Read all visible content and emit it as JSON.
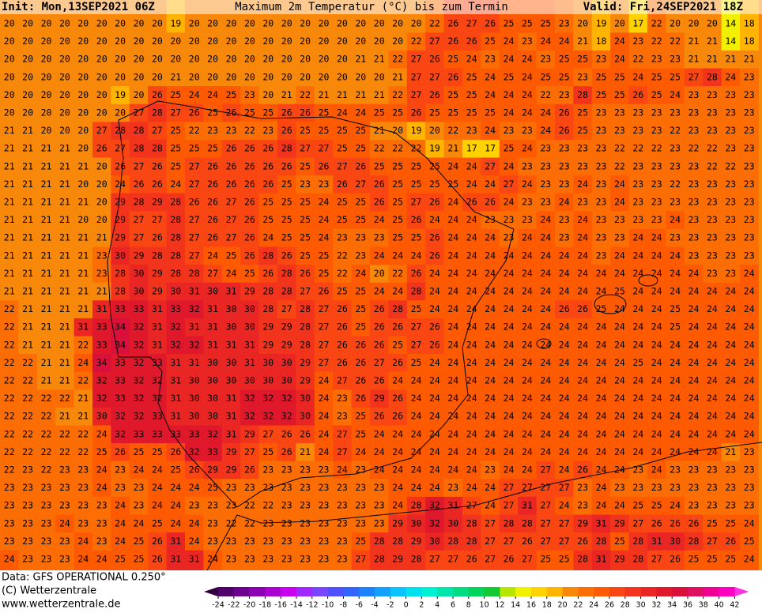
{
  "header": {
    "init": "Init: Mon,13SEP2021 06Z",
    "title": "Maximum 2m Temperatur (°C) bis zum Termin",
    "valid": "Valid: Fri,24SEP2021 18Z"
  },
  "map": {
    "rows": [
      [
        20,
        20,
        20,
        20,
        20,
        20,
        20,
        20,
        20,
        19,
        20,
        20,
        20,
        20,
        20,
        20,
        20,
        20,
        20,
        20,
        20,
        20,
        20,
        22,
        26,
        27,
        26,
        25,
        25,
        25,
        23,
        20,
        19,
        20,
        17,
        22,
        20,
        20,
        20,
        14,
        18
      ],
      [
        20,
        20,
        20,
        20,
        20,
        20,
        20,
        20,
        20,
        20,
        20,
        20,
        20,
        20,
        20,
        20,
        20,
        20,
        20,
        20,
        20,
        20,
        22,
        27,
        26,
        26,
        25,
        24,
        23,
        24,
        24,
        21,
        18,
        24,
        23,
        22,
        22,
        21,
        21,
        14,
        18
      ],
      [
        20,
        20,
        20,
        20,
        20,
        20,
        20,
        20,
        20,
        20,
        20,
        20,
        20,
        20,
        20,
        20,
        20,
        20,
        20,
        21,
        21,
        22,
        27,
        26,
        25,
        24,
        23,
        24,
        24,
        23,
        25,
        25,
        23,
        24,
        22,
        23,
        23,
        21,
        21,
        21,
        21
      ],
      [
        20,
        20,
        20,
        20,
        20,
        20,
        20,
        20,
        20,
        21,
        20,
        20,
        20,
        20,
        20,
        20,
        20,
        20,
        20,
        20,
        20,
        21,
        27,
        27,
        26,
        25,
        24,
        25,
        24,
        25,
        25,
        23,
        25,
        25,
        24,
        25,
        25,
        27,
        28,
        24,
        23
      ],
      [
        20,
        20,
        20,
        20,
        20,
        20,
        19,
        20,
        26,
        25,
        24,
        24,
        25,
        23,
        20,
        21,
        22,
        21,
        21,
        21,
        21,
        22,
        27,
        26,
        25,
        25,
        24,
        24,
        24,
        22,
        23,
        28,
        25,
        25,
        26,
        25,
        24,
        23,
        23,
        23,
        23
      ],
      [
        20,
        20,
        20,
        20,
        20,
        20,
        20,
        27,
        28,
        27,
        26,
        25,
        26,
        25,
        25,
        26,
        26,
        25,
        24,
        24,
        25,
        25,
        26,
        25,
        25,
        25,
        25,
        24,
        24,
        24,
        26,
        25,
        23,
        23,
        23,
        23,
        23,
        23,
        23,
        23,
        23
      ],
      [
        21,
        21,
        20,
        20,
        20,
        27,
        28,
        28,
        27,
        25,
        22,
        23,
        23,
        22,
        23,
        26,
        25,
        25,
        25,
        25,
        21,
        20,
        19,
        20,
        22,
        23,
        24,
        23,
        23,
        24,
        26,
        25,
        23,
        23,
        23,
        23,
        22,
        23,
        23,
        23,
        23
      ],
      [
        21,
        21,
        21,
        21,
        20,
        26,
        27,
        28,
        28,
        25,
        25,
        25,
        26,
        26,
        26,
        28,
        27,
        27,
        25,
        25,
        22,
        22,
        22,
        19,
        21,
        17,
        17,
        25,
        24,
        23,
        23,
        23,
        23,
        22,
        22,
        22,
        23,
        22,
        22,
        23,
        23
      ],
      [
        21,
        21,
        21,
        21,
        21,
        20,
        26,
        27,
        26,
        25,
        27,
        26,
        26,
        26,
        26,
        26,
        25,
        26,
        27,
        26,
        25,
        25,
        25,
        25,
        24,
        24,
        27,
        24,
        23,
        23,
        23,
        23,
        23,
        22,
        23,
        23,
        23,
        23,
        22,
        22,
        23
      ],
      [
        21,
        21,
        21,
        21,
        20,
        20,
        24,
        26,
        26,
        24,
        27,
        26,
        26,
        26,
        26,
        25,
        23,
        23,
        26,
        27,
        26,
        25,
        25,
        25,
        25,
        24,
        24,
        27,
        24,
        23,
        23,
        24,
        23,
        24,
        23,
        23,
        22,
        23,
        23,
        23,
        23
      ],
      [
        21,
        21,
        21,
        21,
        21,
        20,
        29,
        28,
        29,
        28,
        26,
        26,
        27,
        26,
        25,
        25,
        25,
        24,
        25,
        25,
        26,
        25,
        27,
        26,
        24,
        26,
        26,
        24,
        23,
        23,
        24,
        23,
        23,
        24,
        23,
        23,
        23,
        23,
        23,
        23,
        23
      ],
      [
        21,
        21,
        21,
        21,
        20,
        20,
        29,
        27,
        27,
        28,
        27,
        26,
        27,
        26,
        25,
        25,
        25,
        24,
        25,
        25,
        24,
        25,
        26,
        24,
        24,
        24,
        23,
        23,
        23,
        24,
        23,
        24,
        23,
        23,
        23,
        23,
        24,
        23,
        23,
        23,
        23
      ],
      [
        21,
        21,
        21,
        21,
        21,
        21,
        29,
        27,
        26,
        28,
        27,
        26,
        27,
        26,
        24,
        25,
        25,
        24,
        23,
        23,
        23,
        25,
        25,
        26,
        24,
        24,
        24,
        23,
        24,
        24,
        23,
        24,
        23,
        23,
        24,
        24,
        23,
        23,
        23,
        23,
        23
      ],
      [
        21,
        21,
        21,
        21,
        21,
        23,
        30,
        29,
        28,
        28,
        27,
        24,
        25,
        26,
        28,
        26,
        25,
        25,
        22,
        23,
        24,
        24,
        24,
        26,
        24,
        24,
        24,
        24,
        24,
        24,
        24,
        24,
        23,
        24,
        24,
        24,
        24,
        23,
        23,
        23,
        23
      ],
      [
        21,
        21,
        21,
        21,
        21,
        23,
        28,
        30,
        29,
        28,
        28,
        27,
        24,
        25,
        26,
        28,
        26,
        25,
        22,
        24,
        20,
        22,
        26,
        24,
        24,
        24,
        24,
        24,
        24,
        24,
        24,
        24,
        24,
        24,
        24,
        24,
        24,
        24,
        23,
        23,
        24
      ],
      [
        21,
        21,
        21,
        21,
        21,
        21,
        28,
        30,
        29,
        30,
        31,
        30,
        31,
        29,
        28,
        28,
        27,
        26,
        25,
        25,
        24,
        24,
        28,
        24,
        24,
        24,
        24,
        24,
        24,
        24,
        24,
        24,
        24,
        25,
        24,
        24,
        24,
        24,
        24,
        24,
        24
      ],
      [
        22,
        21,
        21,
        21,
        21,
        31,
        33,
        33,
        31,
        33,
        32,
        31,
        30,
        30,
        28,
        27,
        28,
        27,
        26,
        25,
        26,
        28,
        25,
        24,
        24,
        24,
        24,
        24,
        24,
        24,
        26,
        26,
        25,
        24,
        24,
        24,
        25,
        24,
        24,
        24,
        24
      ],
      [
        22,
        21,
        21,
        21,
        31,
        33,
        34,
        32,
        31,
        32,
        31,
        31,
        30,
        30,
        29,
        29,
        28,
        27,
        26,
        25,
        26,
        26,
        27,
        26,
        24,
        24,
        24,
        24,
        24,
        24,
        24,
        24,
        24,
        24,
        24,
        24,
        25,
        24,
        24,
        24,
        24
      ],
      [
        22,
        21,
        21,
        21,
        22,
        33,
        34,
        32,
        31,
        32,
        32,
        31,
        31,
        31,
        29,
        29,
        28,
        27,
        26,
        26,
        26,
        25,
        27,
        26,
        24,
        24,
        24,
        24,
        24,
        24,
        24,
        24,
        24,
        24,
        24,
        24,
        24,
        24,
        24,
        24,
        24
      ],
      [
        22,
        22,
        21,
        21,
        24,
        34,
        33,
        32,
        33,
        31,
        31,
        30,
        30,
        31,
        30,
        30,
        29,
        27,
        26,
        26,
        27,
        26,
        25,
        24,
        24,
        24,
        24,
        24,
        24,
        24,
        24,
        24,
        24,
        24,
        25,
        24,
        24,
        24,
        24,
        24,
        24
      ],
      [
        22,
        22,
        21,
        21,
        22,
        32,
        33,
        32,
        32,
        31,
        30,
        30,
        30,
        30,
        30,
        30,
        29,
        24,
        27,
        26,
        26,
        24,
        24,
        24,
        24,
        24,
        24,
        24,
        24,
        24,
        24,
        24,
        24,
        24,
        24,
        24,
        24,
        24,
        24,
        24,
        24
      ],
      [
        22,
        22,
        22,
        22,
        21,
        32,
        33,
        32,
        32,
        31,
        30,
        30,
        31,
        32,
        32,
        32,
        30,
        24,
        23,
        26,
        29,
        26,
        24,
        24,
        24,
        24,
        24,
        24,
        24,
        24,
        24,
        24,
        24,
        24,
        24,
        24,
        24,
        24,
        24,
        24,
        24
      ],
      [
        22,
        22,
        22,
        21,
        21,
        30,
        32,
        32,
        33,
        31,
        30,
        30,
        31,
        32,
        32,
        32,
        30,
        24,
        23,
        25,
        26,
        26,
        24,
        24,
        24,
        24,
        24,
        24,
        24,
        24,
        24,
        24,
        24,
        24,
        24,
        24,
        24,
        24,
        24,
        24,
        24
      ],
      [
        22,
        22,
        22,
        22,
        22,
        24,
        32,
        33,
        33,
        33,
        33,
        32,
        31,
        29,
        27,
        26,
        26,
        24,
        27,
        25,
        24,
        24,
        24,
        24,
        24,
        24,
        24,
        24,
        24,
        24,
        24,
        24,
        24,
        24,
        24,
        24,
        24,
        24,
        24,
        24,
        24
      ],
      [
        22,
        22,
        22,
        22,
        22,
        25,
        26,
        25,
        25,
        26,
        32,
        33,
        29,
        27,
        25,
        26,
        21,
        24,
        27,
        24,
        24,
        24,
        24,
        24,
        24,
        24,
        24,
        24,
        24,
        24,
        24,
        24,
        24,
        24,
        24,
        24,
        24,
        24,
        24,
        21,
        23
      ],
      [
        22,
        23,
        22,
        23,
        23,
        24,
        23,
        24,
        24,
        25,
        26,
        29,
        29,
        26,
        23,
        23,
        23,
        23,
        24,
        23,
        24,
        24,
        24,
        24,
        24,
        24,
        23,
        24,
        24,
        27,
        24,
        26,
        24,
        24,
        23,
        24,
        23,
        23,
        23,
        23,
        23
      ],
      [
        23,
        23,
        23,
        23,
        23,
        24,
        23,
        23,
        24,
        24,
        24,
        25,
        23,
        23,
        23,
        23,
        23,
        23,
        23,
        23,
        23,
        24,
        24,
        24,
        23,
        24,
        24,
        27,
        27,
        27,
        27,
        23,
        24,
        23,
        23,
        23,
        23,
        23,
        23,
        23,
        23
      ],
      [
        23,
        23,
        23,
        23,
        23,
        23,
        24,
        23,
        24,
        24,
        23,
        23,
        23,
        22,
        22,
        23,
        23,
        23,
        23,
        23,
        23,
        24,
        28,
        32,
        31,
        27,
        24,
        27,
        31,
        27,
        24,
        23,
        24,
        24,
        25,
        25,
        24,
        23,
        23,
        23,
        23
      ],
      [
        23,
        23,
        23,
        24,
        23,
        23,
        24,
        24,
        25,
        24,
        24,
        23,
        22,
        22,
        23,
        23,
        23,
        23,
        23,
        23,
        23,
        29,
        30,
        32,
        30,
        28,
        27,
        28,
        28,
        27,
        27,
        29,
        31,
        29,
        27,
        26,
        26,
        26,
        25,
        25,
        24
      ],
      [
        23,
        23,
        23,
        23,
        24,
        23,
        24,
        25,
        26,
        31,
        24,
        23,
        23,
        23,
        23,
        23,
        23,
        23,
        23,
        25,
        28,
        28,
        29,
        30,
        28,
        28,
        27,
        27,
        26,
        27,
        27,
        26,
        28,
        25,
        28,
        31,
        30,
        28,
        27,
        26,
        25
      ],
      [
        24,
        23,
        23,
        23,
        24,
        24,
        25,
        25,
        26,
        31,
        31,
        24,
        23,
        23,
        23,
        23,
        23,
        23,
        23,
        27,
        28,
        29,
        28,
        27,
        27,
        26,
        27,
        26,
        27,
        25,
        25,
        28,
        31,
        29,
        28,
        27,
        26,
        25,
        25,
        25,
        24
      ]
    ]
  },
  "colorbar": {
    "ticks": [
      -24,
      -22,
      -20,
      -18,
      -16,
      -14,
      -12,
      -10,
      -8,
      -6,
      -4,
      -2,
      0,
      2,
      4,
      6,
      8,
      10,
      12,
      14,
      16,
      18,
      20,
      22,
      24,
      26,
      28,
      30,
      32,
      34,
      36,
      38,
      40,
      42
    ],
    "colors": [
      "#320040",
      "#50006a",
      "#6e0090",
      "#8c00b4",
      "#aa00d2",
      "#c800f0",
      "#a028ff",
      "#7846ff",
      "#5050ff",
      "#3264ff",
      "#1e82ff",
      "#14a0ff",
      "#0ac3ff",
      "#00e1f0",
      "#00f0d2",
      "#00e6aa",
      "#00dc82",
      "#00d25a",
      "#14c832",
      "#b4e600",
      "#f0f000",
      "#ffd200",
      "#ffb400",
      "#f8880a",
      "#fc6e04",
      "#fe5a02",
      "#fa4612",
      "#f2341c",
      "#ea2624",
      "#e0182c",
      "#d8103a",
      "#e01060",
      "#f00090",
      "#ff00c0",
      "#ff30e0"
    ]
  },
  "footer": {
    "data": "Data: GFS OPERATIONAL 0.250°",
    "copyright": "(C) Wetterzentrale",
    "url": "www.wetterzentrale.de"
  }
}
